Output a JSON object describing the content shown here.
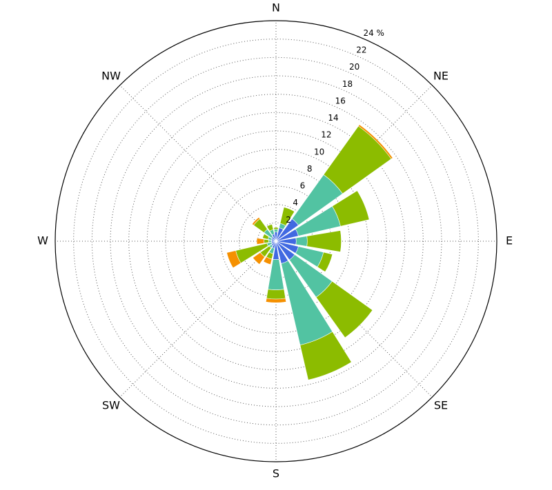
{
  "chart_data": {
    "type": "windrose",
    "categories": [
      "N",
      null,
      "NE",
      null,
      "E",
      null,
      "SE",
      null,
      "S",
      null,
      "SW",
      null,
      "W",
      null,
      "NW",
      null
    ],
    "series": [
      {
        "color": "#4169e1",
        "values": [
          1.0,
          1.5,
          3.0,
          2.5,
          2.2,
          2.5,
          2.5,
          2.5,
          2.0,
          0.8,
          0.6,
          0.5,
          0.5,
          0.5,
          0.6,
          0.8
        ]
      },
      {
        "color": "#52c3a2",
        "values": [
          0.3,
          0.5,
          5.9,
          4.7,
          1.2,
          2.8,
          5.0,
          9.1,
          3.3,
          0.6,
          0.3,
          0.5,
          0.3,
          0.4,
          1.0,
          0.5
        ]
      },
      {
        "color": "#8cbc00",
        "values": [
          0.2,
          1.8,
          6.5,
          3.2,
          3.7,
          1.0,
          5.4,
          3.9,
          1.0,
          0.6,
          1.2,
          3.5,
          0.5,
          0.6,
          1.4,
          0.6
        ]
      },
      {
        "color": "#f59000",
        "values": [
          0,
          0,
          0.2,
          0,
          0,
          0,
          0,
          0,
          0.4,
          0.6,
          1.0,
          1.0,
          0.8,
          0,
          0.2,
          0
        ]
      }
    ],
    "ylim": [
      0,
      24
    ],
    "yticks": [
      2,
      4,
      6,
      8,
      10,
      12,
      14,
      16,
      18,
      20,
      22,
      {
        "value": 24,
        "label": "24 %"
      }
    ],
    "grid": true
  }
}
